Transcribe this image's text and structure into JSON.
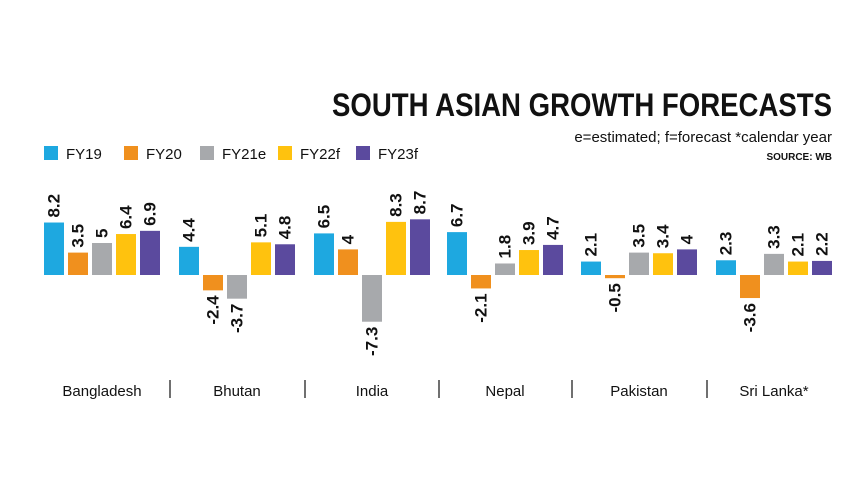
{
  "header": {
    "title": "SOUTH ASIAN GROWTH FORECASTS",
    "note": "e=estimated; f=forecast *calendar year",
    "source": "SOURCE: WB"
  },
  "chart_data": {
    "type": "bar",
    "title": "SOUTH ASIAN GROWTH FORECASTS",
    "categories": [
      "Bangladesh",
      "Bhutan",
      "India",
      "Nepal",
      "Pakistan",
      "Sri Lanka*"
    ],
    "series": [
      {
        "name": "FY19",
        "color": "#1ea8e0",
        "values": [
          8.2,
          4.4,
          6.5,
          6.7,
          2.1,
          2.3
        ]
      },
      {
        "name": "FY20",
        "color": "#f0901e",
        "values": [
          3.5,
          -2.4,
          4,
          -2.1,
          -0.5,
          -3.6
        ]
      },
      {
        "name": "FY21e",
        "color": "#a7a9ac",
        "values": [
          5,
          -3.7,
          -7.3,
          1.8,
          3.5,
          3.3
        ]
      },
      {
        "name": "FY22f",
        "color": "#ffc20e",
        "values": [
          6.4,
          5.1,
          8.3,
          3.9,
          3.4,
          2.1
        ]
      },
      {
        "name": "FY23f",
        "color": "#5b4a9e",
        "values": [
          6.9,
          4.8,
          8.7,
          4.7,
          4,
          2.2
        ]
      }
    ],
    "value_labels": [
      [
        "8.2",
        "4.4",
        "6.5",
        "6.7",
        "2.1",
        "2.3"
      ],
      [
        "3.5",
        "-2.4",
        "4",
        "-2.1",
        "-0.5",
        "-3.6"
      ],
      [
        "5",
        "-3.7",
        "-7.3",
        "1.8",
        "3.5",
        "3.3"
      ],
      [
        "6.4",
        "5.1",
        "8.3",
        "3.9",
        "3.4",
        "2.1"
      ],
      [
        "6.9",
        "4.8",
        "8.7",
        "4.7",
        "4",
        "2.2"
      ]
    ],
    "legend_position": "top-left",
    "grid": false
  }
}
